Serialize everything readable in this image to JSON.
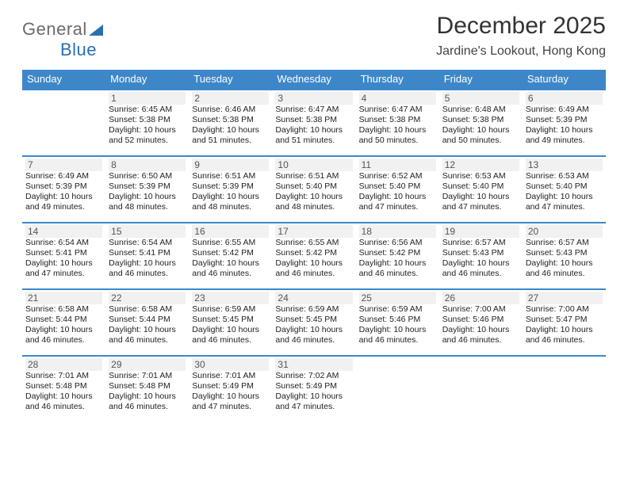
{
  "brand": {
    "part1": "General",
    "part2": "Blue"
  },
  "title": "December 2025",
  "subtitle": "Jardine's Lookout, Hong Kong",
  "colors": {
    "header_bg": "#3d87c9",
    "header_text": "#ffffff",
    "week_border": "#3d87c9",
    "text": "#222222",
    "daynum_bg": "#f1f1f1",
    "logo_gray": "#6b6b6b",
    "logo_blue": "#2b6fb3"
  },
  "dayHeaders": [
    "Sunday",
    "Monday",
    "Tuesday",
    "Wednesday",
    "Thursday",
    "Friday",
    "Saturday"
  ],
  "weeks": [
    [
      {
        "num": "",
        "sunrise": "",
        "sunset": "",
        "daylight": ""
      },
      {
        "num": "1",
        "sunrise": "Sunrise: 6:45 AM",
        "sunset": "Sunset: 5:38 PM",
        "daylight": "Daylight: 10 hours and 52 minutes."
      },
      {
        "num": "2",
        "sunrise": "Sunrise: 6:46 AM",
        "sunset": "Sunset: 5:38 PM",
        "daylight": "Daylight: 10 hours and 51 minutes."
      },
      {
        "num": "3",
        "sunrise": "Sunrise: 6:47 AM",
        "sunset": "Sunset: 5:38 PM",
        "daylight": "Daylight: 10 hours and 51 minutes."
      },
      {
        "num": "4",
        "sunrise": "Sunrise: 6:47 AM",
        "sunset": "Sunset: 5:38 PM",
        "daylight": "Daylight: 10 hours and 50 minutes."
      },
      {
        "num": "5",
        "sunrise": "Sunrise: 6:48 AM",
        "sunset": "Sunset: 5:38 PM",
        "daylight": "Daylight: 10 hours and 50 minutes."
      },
      {
        "num": "6",
        "sunrise": "Sunrise: 6:49 AM",
        "sunset": "Sunset: 5:39 PM",
        "daylight": "Daylight: 10 hours and 49 minutes."
      }
    ],
    [
      {
        "num": "7",
        "sunrise": "Sunrise: 6:49 AM",
        "sunset": "Sunset: 5:39 PM",
        "daylight": "Daylight: 10 hours and 49 minutes."
      },
      {
        "num": "8",
        "sunrise": "Sunrise: 6:50 AM",
        "sunset": "Sunset: 5:39 PM",
        "daylight": "Daylight: 10 hours and 48 minutes."
      },
      {
        "num": "9",
        "sunrise": "Sunrise: 6:51 AM",
        "sunset": "Sunset: 5:39 PM",
        "daylight": "Daylight: 10 hours and 48 minutes."
      },
      {
        "num": "10",
        "sunrise": "Sunrise: 6:51 AM",
        "sunset": "Sunset: 5:40 PM",
        "daylight": "Daylight: 10 hours and 48 minutes."
      },
      {
        "num": "11",
        "sunrise": "Sunrise: 6:52 AM",
        "sunset": "Sunset: 5:40 PM",
        "daylight": "Daylight: 10 hours and 47 minutes."
      },
      {
        "num": "12",
        "sunrise": "Sunrise: 6:53 AM",
        "sunset": "Sunset: 5:40 PM",
        "daylight": "Daylight: 10 hours and 47 minutes."
      },
      {
        "num": "13",
        "sunrise": "Sunrise: 6:53 AM",
        "sunset": "Sunset: 5:40 PM",
        "daylight": "Daylight: 10 hours and 47 minutes."
      }
    ],
    [
      {
        "num": "14",
        "sunrise": "Sunrise: 6:54 AM",
        "sunset": "Sunset: 5:41 PM",
        "daylight": "Daylight: 10 hours and 47 minutes."
      },
      {
        "num": "15",
        "sunrise": "Sunrise: 6:54 AM",
        "sunset": "Sunset: 5:41 PM",
        "daylight": "Daylight: 10 hours and 46 minutes."
      },
      {
        "num": "16",
        "sunrise": "Sunrise: 6:55 AM",
        "sunset": "Sunset: 5:42 PM",
        "daylight": "Daylight: 10 hours and 46 minutes."
      },
      {
        "num": "17",
        "sunrise": "Sunrise: 6:55 AM",
        "sunset": "Sunset: 5:42 PM",
        "daylight": "Daylight: 10 hours and 46 minutes."
      },
      {
        "num": "18",
        "sunrise": "Sunrise: 6:56 AM",
        "sunset": "Sunset: 5:42 PM",
        "daylight": "Daylight: 10 hours and 46 minutes."
      },
      {
        "num": "19",
        "sunrise": "Sunrise: 6:57 AM",
        "sunset": "Sunset: 5:43 PM",
        "daylight": "Daylight: 10 hours and 46 minutes."
      },
      {
        "num": "20",
        "sunrise": "Sunrise: 6:57 AM",
        "sunset": "Sunset: 5:43 PM",
        "daylight": "Daylight: 10 hours and 46 minutes."
      }
    ],
    [
      {
        "num": "21",
        "sunrise": "Sunrise: 6:58 AM",
        "sunset": "Sunset: 5:44 PM",
        "daylight": "Daylight: 10 hours and 46 minutes."
      },
      {
        "num": "22",
        "sunrise": "Sunrise: 6:58 AM",
        "sunset": "Sunset: 5:44 PM",
        "daylight": "Daylight: 10 hours and 46 minutes."
      },
      {
        "num": "23",
        "sunrise": "Sunrise: 6:59 AM",
        "sunset": "Sunset: 5:45 PM",
        "daylight": "Daylight: 10 hours and 46 minutes."
      },
      {
        "num": "24",
        "sunrise": "Sunrise: 6:59 AM",
        "sunset": "Sunset: 5:45 PM",
        "daylight": "Daylight: 10 hours and 46 minutes."
      },
      {
        "num": "25",
        "sunrise": "Sunrise: 6:59 AM",
        "sunset": "Sunset: 5:46 PM",
        "daylight": "Daylight: 10 hours and 46 minutes."
      },
      {
        "num": "26",
        "sunrise": "Sunrise: 7:00 AM",
        "sunset": "Sunset: 5:46 PM",
        "daylight": "Daylight: 10 hours and 46 minutes."
      },
      {
        "num": "27",
        "sunrise": "Sunrise: 7:00 AM",
        "sunset": "Sunset: 5:47 PM",
        "daylight": "Daylight: 10 hours and 46 minutes."
      }
    ],
    [
      {
        "num": "28",
        "sunrise": "Sunrise: 7:01 AM",
        "sunset": "Sunset: 5:48 PM",
        "daylight": "Daylight: 10 hours and 46 minutes."
      },
      {
        "num": "29",
        "sunrise": "Sunrise: 7:01 AM",
        "sunset": "Sunset: 5:48 PM",
        "daylight": "Daylight: 10 hours and 46 minutes."
      },
      {
        "num": "30",
        "sunrise": "Sunrise: 7:01 AM",
        "sunset": "Sunset: 5:49 PM",
        "daylight": "Daylight: 10 hours and 47 minutes."
      },
      {
        "num": "31",
        "sunrise": "Sunrise: 7:02 AM",
        "sunset": "Sunset: 5:49 PM",
        "daylight": "Daylight: 10 hours and 47 minutes."
      },
      {
        "num": "",
        "sunrise": "",
        "sunset": "",
        "daylight": ""
      },
      {
        "num": "",
        "sunrise": "",
        "sunset": "",
        "daylight": ""
      },
      {
        "num": "",
        "sunrise": "",
        "sunset": "",
        "daylight": ""
      }
    ]
  ]
}
